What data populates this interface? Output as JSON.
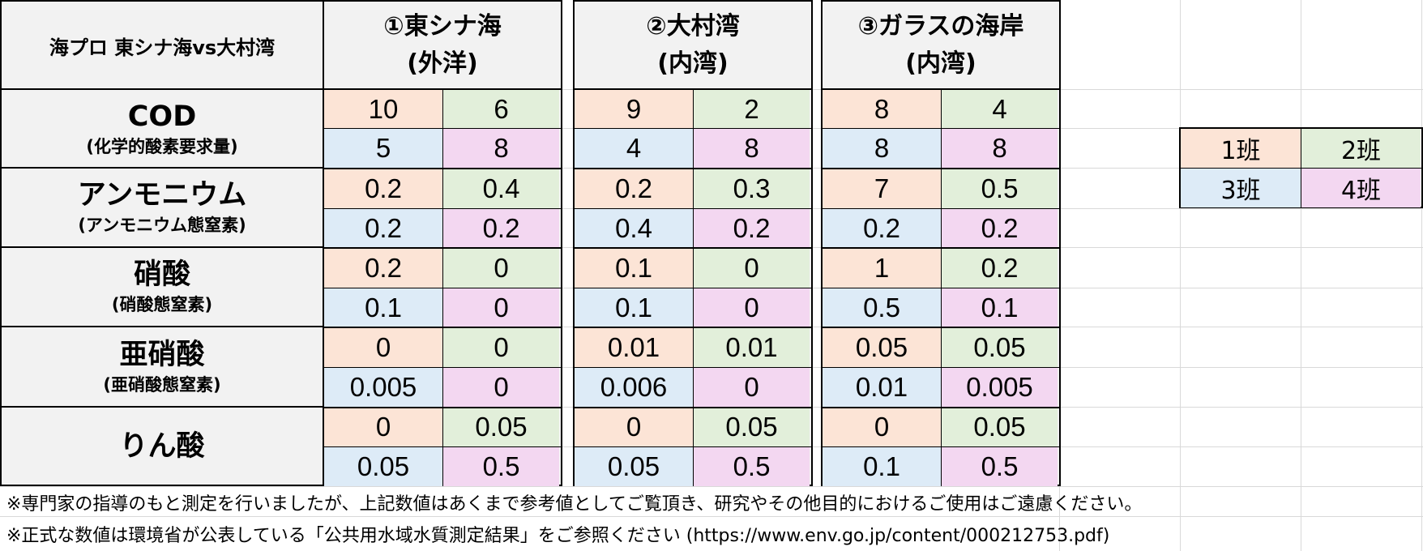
{
  "title": "海プロ 東シナ海vs大村湾",
  "groups": [
    {
      "name": "①東シナ海",
      "sub": "(外洋)"
    },
    {
      "name": "②大村湾",
      "sub": "(内湾)"
    },
    {
      "name": "③ガラスの海岸",
      "sub": "(内湾)"
    }
  ],
  "rows": [
    {
      "label": "COD",
      "sub": "(化学的酸素要求量)"
    },
    {
      "label": "アンモニウム",
      "sub": "(アンモニウム態窒素)"
    },
    {
      "label": "硝酸",
      "sub": "(硝酸態窒素)"
    },
    {
      "label": "亜硝酸",
      "sub": "(亜硝酸態窒素)"
    },
    {
      "label": "りん酸",
      "sub": ""
    }
  ],
  "values": [
    [
      [
        "10",
        "6",
        "5",
        "8"
      ],
      [
        "9",
        "2",
        "4",
        "8"
      ],
      [
        "8",
        "4",
        "8",
        "8"
      ]
    ],
    [
      [
        "0.2",
        "0.4",
        "0.2",
        "0.2"
      ],
      [
        "0.2",
        "0.3",
        "0.4",
        "0.2"
      ],
      [
        "7",
        "0.5",
        "0.2",
        "0.2"
      ]
    ],
    [
      [
        "0.2",
        "0",
        "0.1",
        "0"
      ],
      [
        "0.1",
        "0",
        "0.1",
        "0"
      ],
      [
        "1",
        "0.2",
        "0.5",
        "0.1"
      ]
    ],
    [
      [
        "0",
        "0",
        "0.005",
        "0"
      ],
      [
        "0.01",
        "0.01",
        "0.006",
        "0"
      ],
      [
        "0.05",
        "0.05",
        "0.01",
        "0.005"
      ]
    ],
    [
      [
        "0",
        "0.05",
        "0.05",
        "0.5"
      ],
      [
        "0",
        "0.05",
        "0.05",
        "0.5"
      ],
      [
        "0",
        "0.05",
        "0.1",
        "0.5"
      ]
    ]
  ],
  "legend": [
    "1班",
    "2班",
    "3班",
    "4班"
  ],
  "colors": {
    "class1": "#fce4d6",
    "class2": "#e2efda",
    "class3": "#ddebf7",
    "class4": "#f3d7f1"
  },
  "notes": [
    "※専門家の指導のもと測定を行いましたが、上記数値はあくまで参考値としてご覧頂き、研究やその他目的におけるご使用はご遠慮ください。",
    "※正式な数値は環境省が公表している「公共用水域水質測定結果」をご参照ください (https://www.env.go.jp/content/000212753.pdf)"
  ]
}
